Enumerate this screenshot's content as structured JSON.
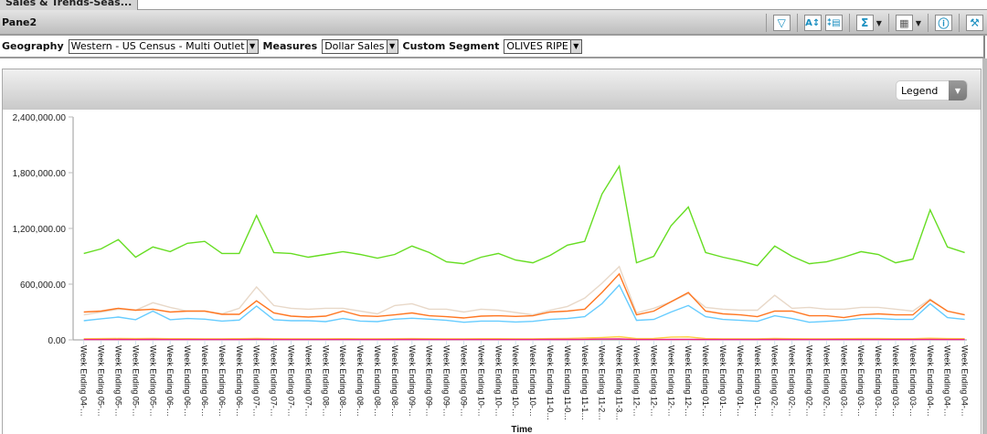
{
  "tab": {
    "label": "Sales & Trends-Seas..."
  },
  "pane": {
    "title": "Pane2"
  },
  "toolbar": {
    "icons": [
      "filter-icon",
      "sort-icon",
      "column-select-icon",
      "sum-icon",
      "chart-type-icon",
      "info-icon",
      "tools-icon"
    ]
  },
  "filters": [
    {
      "label": "Geography",
      "value": "Western - US Census - Multi Outlet"
    },
    {
      "label": "Measures",
      "value": "Dollar Sales"
    },
    {
      "label": "Custom Segment",
      "value": "OLIVES RIPE"
    }
  ],
  "legend_dropdown": {
    "label": "Legend"
  },
  "chart_data": {
    "type": "line",
    "xlabel": "Time",
    "ylabel": "",
    "ylim": [
      0,
      2400000
    ],
    "yticks": [
      "0.00",
      "600,000.00",
      "1,200,000.00",
      "1,800,000.00",
      "2,400,000.00"
    ],
    "grid": false,
    "categories": [
      "Week Ending 04-…",
      "Week Ending 05-…",
      "Week Ending 05-…",
      "Week Ending 05-…",
      "Week Ending 05-…",
      "Week Ending 06-…",
      "Week Ending 06-…",
      "Week Ending 06-…",
      "Week Ending 06-…",
      "Week Ending 06-…",
      "Week Ending 07-…",
      "Week Ending 07-…",
      "Week Ending 07-…",
      "Week Ending 07-…",
      "Week Ending 08-…",
      "Week Ending 08-…",
      "Week Ending 08-…",
      "Week Ending 08-…",
      "Week Ending 08-…",
      "Week Ending 09-…",
      "Week Ending 09-…",
      "Week Ending 09-…",
      "Week Ending 09-…",
      "Week Ending 10-…",
      "Week Ending 10-…",
      "Week Ending 10-…",
      "Week Ending 10-…",
      "Week Ending 11-0…",
      "Week Ending 11-0…",
      "Week Ending 11-1…",
      "Week Ending 11-2…",
      "Week Ending 11-3…",
      "Week Ending 12-…",
      "Week Ending 12-…",
      "Week Ending 12-…",
      "Week Ending 12-…",
      "Week Ending 01-…",
      "Week Ending 01-…",
      "Week Ending 01-…",
      "Week Ending 01-…",
      "Week Ending 02-…",
      "Week Ending 02-…",
      "Week Ending 02-…",
      "Week Ending 02-…",
      "Week Ending 03-…",
      "Week Ending 03-…",
      "Week Ending 03-…",
      "Week Ending 03-…",
      "Week Ending 03-…",
      "Week Ending 04-…",
      "Week Ending 04-…",
      "Week Ending 04-…"
    ],
    "series": [
      {
        "color": "#66dd22",
        "values": [
          930000,
          980000,
          1080000,
          890000,
          1000000,
          950000,
          1040000,
          1060000,
          930000,
          930000,
          1340000,
          940000,
          930000,
          890000,
          920000,
          950000,
          920000,
          880000,
          920000,
          1010000,
          940000,
          840000,
          820000,
          890000,
          930000,
          860000,
          830000,
          910000,
          1020000,
          1060000,
          1570000,
          1870000,
          830000,
          900000,
          1230000,
          1430000,
          940000,
          890000,
          850000,
          800000,
          1010000,
          900000,
          820000,
          840000,
          890000,
          950000,
          920000,
          830000,
          870000,
          1400000,
          1000000,
          940000
        ]
      },
      {
        "color": "#e8d8c8",
        "values": [
          270000,
          300000,
          330000,
          320000,
          400000,
          350000,
          310000,
          310000,
          280000,
          340000,
          570000,
          370000,
          340000,
          330000,
          340000,
          340000,
          310000,
          280000,
          370000,
          390000,
          330000,
          330000,
          300000,
          330000,
          320000,
          295000,
          270000,
          320000,
          360000,
          450000,
          610000,
          790000,
          290000,
          340000,
          410000,
          500000,
          350000,
          330000,
          320000,
          320000,
          480000,
          340000,
          350000,
          330000,
          330000,
          350000,
          350000,
          330000,
          310000,
          440000,
          310000,
          270000
        ]
      },
      {
        "color": "#ff7722",
        "values": [
          300000,
          310000,
          340000,
          320000,
          330000,
          300000,
          310000,
          310000,
          275000,
          275000,
          420000,
          290000,
          256000,
          246000,
          256000,
          310000,
          260000,
          253000,
          270000,
          290000,
          260000,
          250000,
          236000,
          256000,
          260000,
          253000,
          260000,
          300000,
          310000,
          330000,
          510000,
          710000,
          270000,
          310000,
          410000,
          510000,
          310000,
          280000,
          270000,
          250000,
          310000,
          310000,
          260000,
          260000,
          240000,
          270000,
          280000,
          270000,
          270000,
          430000,
          310000,
          270000
        ]
      },
      {
        "color": "#66ccff",
        "values": [
          207000,
          227000,
          246000,
          217000,
          310000,
          217000,
          230000,
          223000,
          203000,
          213000,
          364000,
          217000,
          207000,
          207000,
          197000,
          230000,
          203000,
          197000,
          223000,
          233000,
          223000,
          210000,
          190000,
          203000,
          203000,
          193000,
          200000,
          220000,
          230000,
          250000,
          390000,
          590000,
          210000,
          220000,
          300000,
          370000,
          250000,
          220000,
          210000,
          200000,
          260000,
          230000,
          190000,
          200000,
          210000,
          230000,
          230000,
          220000,
          220000,
          390000,
          240000,
          220000
        ]
      },
      {
        "color": "#ffd040",
        "values": [
          12000,
          14000,
          15000,
          14000,
          15000,
          13000,
          13000,
          12000,
          12000,
          13000,
          16000,
          13000,
          12000,
          12000,
          12000,
          13000,
          12000,
          12000,
          13000,
          14000,
          13000,
          12000,
          12000,
          13000,
          13000,
          12000,
          12000,
          14000,
          16000,
          20000,
          26000,
          34000,
          14000,
          16000,
          30000,
          32000,
          14000,
          12000,
          12000,
          12000,
          16000,
          13000,
          12000,
          12000,
          13000,
          14000,
          14000,
          13000,
          13000,
          18000,
          14000,
          13000
        ]
      },
      {
        "color": "#ee2288",
        "values": [
          4000,
          4000,
          5000,
          4000,
          5000,
          4000,
          4000,
          4000,
          4000,
          4000,
          6000,
          4000,
          4000,
          4000,
          4000,
          4000,
          4000,
          4000,
          4000,
          5000,
          4000,
          4000,
          4000,
          4000,
          4000,
          4000,
          4000,
          5000,
          5000,
          6000,
          9000,
          10000,
          4000,
          4000,
          5000,
          6000,
          4000,
          4000,
          4000,
          4000,
          5000,
          4000,
          4000,
          4000,
          4000,
          4000,
          4000,
          4000,
          4000,
          6000,
          4000,
          4000
        ]
      }
    ]
  }
}
